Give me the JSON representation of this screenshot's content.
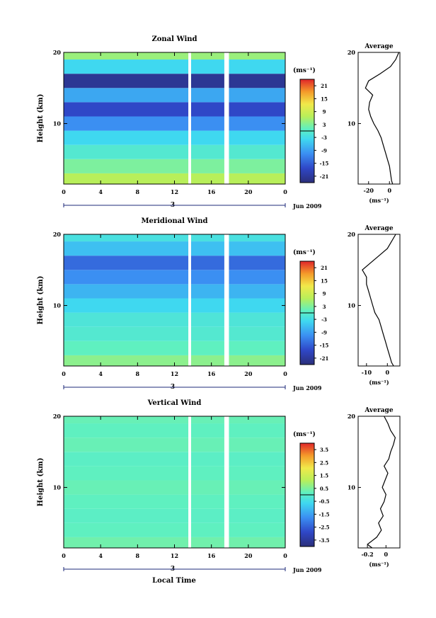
{
  "figure": {
    "xlabel": "Local Time",
    "date_label": "Jun 2009",
    "day_label": "3",
    "average_title": "Average",
    "unit_label": "(ms⁻¹)",
    "ylabel": "Height (km)"
  },
  "chart_data": [
    {
      "type": "heatmap",
      "title": "Zonal Wind",
      "xlabel": "",
      "ylabel": "Height (km)",
      "xlim": [
        0,
        24
      ],
      "ylim": [
        1.5,
        20
      ],
      "x_ticks": [
        "0",
        "4",
        "8",
        "12",
        "16",
        "20",
        "0"
      ],
      "y_ticks": [
        "10",
        "20"
      ],
      "colorbar": {
        "label": "(ms⁻¹)",
        "ticks": [
          "21",
          "15",
          "9",
          "3",
          "-3",
          "-9",
          "-15",
          "-21"
        ],
        "range": [
          -24,
          24
        ]
      },
      "field_bands": [
        {
          "h": [
            1.5,
            3
          ],
          "value": 6
        },
        {
          "h": [
            3,
            5
          ],
          "value": 2
        },
        {
          "h": [
            5,
            7
          ],
          "value": -2
        },
        {
          "h": [
            7,
            9
          ],
          "value": -6
        },
        {
          "h": [
            9,
            11
          ],
          "value": -12
        },
        {
          "h": [
            11,
            13
          ],
          "value": -18
        },
        {
          "h": [
            13,
            15
          ],
          "value": -10
        },
        {
          "h": [
            15,
            17
          ],
          "value": -22
        },
        {
          "h": [
            17,
            19
          ],
          "value": -6
        },
        {
          "h": [
            19,
            20
          ],
          "value": 4
        }
      ],
      "average_profile": {
        "title": "Average",
        "xlabel": "(ms⁻¹)",
        "x_ticks": [
          -20,
          0
        ],
        "xlim": [
          -30,
          10
        ],
        "height_km": [
          1.5,
          2,
          3,
          4,
          5,
          6,
          7,
          8,
          9,
          10,
          11,
          12,
          13,
          14,
          15,
          16,
          17,
          18,
          19,
          20
        ],
        "value": [
          3,
          2,
          1,
          0,
          -2,
          -4,
          -6,
          -8,
          -11,
          -15,
          -18,
          -20,
          -19,
          -16,
          -23,
          -20,
          -9,
          1,
          6,
          9
        ]
      }
    },
    {
      "type": "heatmap",
      "title": "Meridional Wind",
      "xlabel": "",
      "ylabel": "Height (km)",
      "xlim": [
        0,
        24
      ],
      "ylim": [
        1.5,
        20
      ],
      "x_ticks": [
        "0",
        "4",
        "8",
        "12",
        "16",
        "20",
        "0"
      ],
      "y_ticks": [
        "10",
        "20"
      ],
      "colorbar": {
        "label": "(ms⁻¹)",
        "ticks": [
          "21",
          "15",
          "9",
          "3",
          "-3",
          "-9",
          "-15",
          "-21"
        ],
        "range": [
          -24,
          24
        ]
      },
      "field_bands": [
        {
          "h": [
            1.5,
            3
          ],
          "value": 3
        },
        {
          "h": [
            3,
            5
          ],
          "value": 0
        },
        {
          "h": [
            5,
            7
          ],
          "value": -2
        },
        {
          "h": [
            7,
            9
          ],
          "value": -3
        },
        {
          "h": [
            9,
            11
          ],
          "value": -6
        },
        {
          "h": [
            11,
            13
          ],
          "value": -9
        },
        {
          "h": [
            13,
            15
          ],
          "value": -12
        },
        {
          "h": [
            15,
            17
          ],
          "value": -15
        },
        {
          "h": [
            17,
            19
          ],
          "value": -8
        },
        {
          "h": [
            19,
            20
          ],
          "value": -4
        }
      ],
      "average_profile": {
        "title": "Average",
        "xlabel": "(ms⁻¹)",
        "x_ticks": [
          -10,
          0
        ],
        "xlim": [
          -14,
          6
        ],
        "height_km": [
          1.5,
          2,
          3,
          4,
          5,
          6,
          7,
          8,
          9,
          10,
          11,
          12,
          13,
          14,
          15,
          16,
          17,
          18,
          19,
          20
        ],
        "value": [
          3,
          2,
          1,
          0,
          -1,
          -2,
          -3,
          -4,
          -6,
          -7,
          -8,
          -9,
          -10,
          -10,
          -12,
          -8,
          -4,
          0,
          2,
          4
        ]
      }
    },
    {
      "type": "heatmap",
      "title": "Vertical Wind",
      "xlabel": "Local Time",
      "ylabel": "Height (km)",
      "xlim": [
        0,
        24
      ],
      "ylim": [
        1.5,
        20
      ],
      "x_ticks": [
        "0",
        "4",
        "8",
        "12",
        "16",
        "20",
        "0"
      ],
      "y_ticks": [
        "10",
        "20"
      ],
      "colorbar": {
        "label": "(ms⁻¹)",
        "ticks": [
          "3.5",
          "2.5",
          "1.5",
          "0.5",
          "-0.5",
          "-1.5",
          "-2.5",
          "-3.5"
        ],
        "range": [
          -4,
          4
        ]
      },
      "field_bands": [
        {
          "h": [
            1.5,
            3
          ],
          "value": 0.2
        },
        {
          "h": [
            3,
            5
          ],
          "value": 0
        },
        {
          "h": [
            5,
            7
          ],
          "value": -0.1
        },
        {
          "h": [
            7,
            9
          ],
          "value": 0
        },
        {
          "h": [
            9,
            11
          ],
          "value": 0.1
        },
        {
          "h": [
            11,
            13
          ],
          "value": 0
        },
        {
          "h": [
            13,
            15
          ],
          "value": -0.1
        },
        {
          "h": [
            15,
            17
          ],
          "value": 0.1
        },
        {
          "h": [
            17,
            19
          ],
          "value": 0
        },
        {
          "h": [
            19,
            20
          ],
          "value": 0.1
        }
      ],
      "average_profile": {
        "title": "Average",
        "xlabel": "(ms⁻¹)",
        "x_ticks": [
          -0.2,
          0.0
        ],
        "xlim": [
          -0.3,
          0.15
        ],
        "height_km": [
          1.5,
          2,
          3,
          4,
          5,
          6,
          7,
          8,
          9,
          10,
          11,
          12,
          13,
          14,
          15,
          16,
          17,
          18,
          19,
          20
        ],
        "value": [
          -0.15,
          -0.2,
          -0.1,
          -0.05,
          -0.08,
          -0.03,
          -0.06,
          -0.02,
          0,
          -0.04,
          -0.01,
          0.02,
          -0.02,
          0.03,
          0.05,
          0.08,
          0.1,
          0.05,
          0.02,
          -0.02
        ]
      }
    }
  ]
}
